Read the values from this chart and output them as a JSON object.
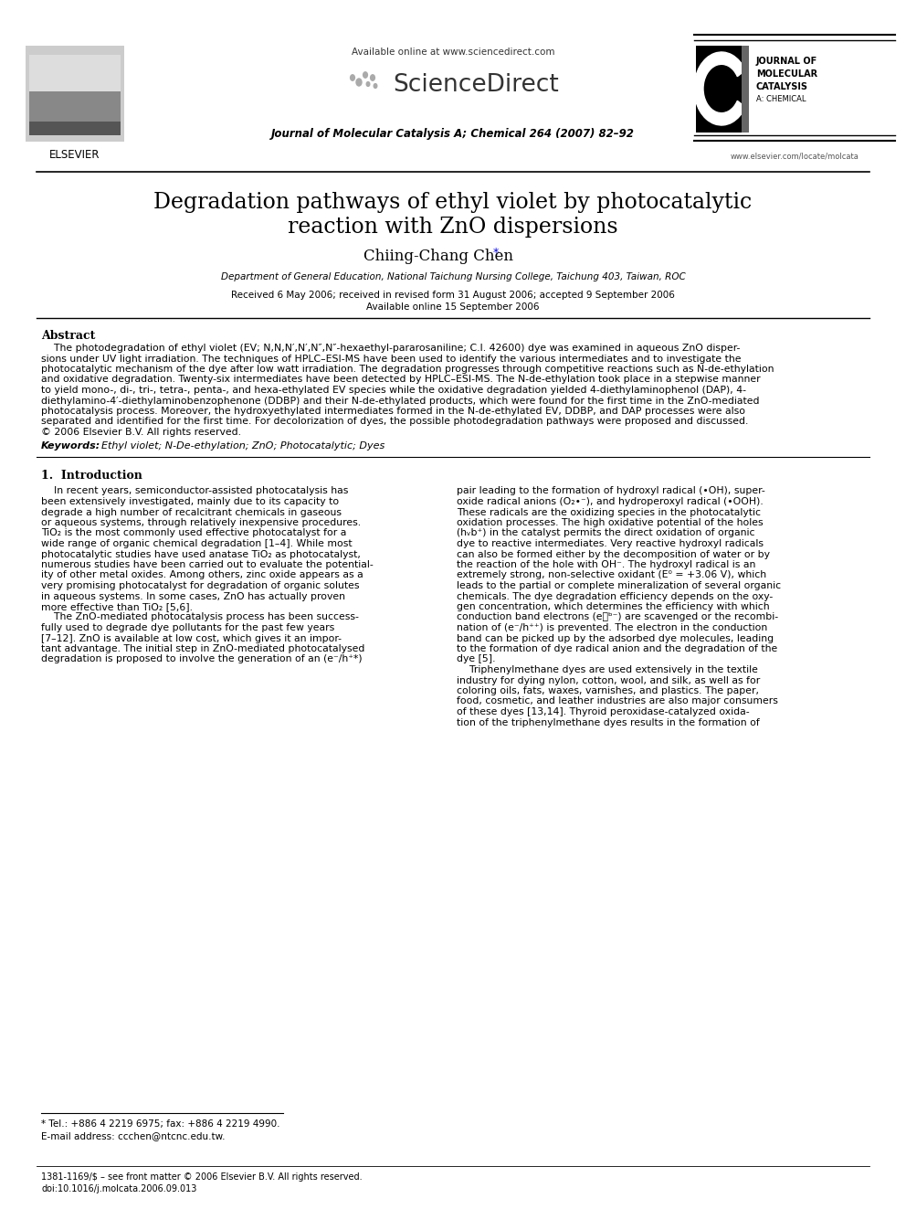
{
  "title_line1": "Degradation pathways of ethyl violet by photocatalytic",
  "title_line2": "reaction with ZnO dispersions",
  "author": "Chiing-Chang Chen",
  "author_asterisk": "*",
  "affiliation": "Department of General Education, National Taichung Nursing College, Taichung 403, Taiwan, ROC",
  "received": "Received 6 May 2006; received in revised form 31 August 2006; accepted 9 September 2006",
  "available": "Available online 15 September 2006",
  "journal_header": "Available online at www.sciencedirect.com",
  "journal_name": "Journal of Molecular Catalysis A; Chemical 264 (2007) 82–92",
  "journal_logo_text_line1": "JOURNAL OF",
  "journal_logo_text_line2": "MOLECULAR",
  "journal_logo_text_line3": "CATALYSIS",
  "journal_logo_text_line4": "A: CHEMICAL",
  "elsevier_label": "ELSEVIER",
  "sciencedirect_text": "ScienceDirect",
  "website": "www.elsevier.com/locate/molcata",
  "abstract_title": "Abstract",
  "keywords_label": "Keywords: ",
  "keywords_text": " Ethyl violet; N-De-ethylation; ZnO; Photocatalytic; Dyes",
  "section1_title": "1.  Introduction",
  "footnote1": "* Tel.: +886 4 2219 6975; fax: +886 4 2219 4990.",
  "footnote2": "E-mail address: ccchen@ntcnc.edu.tw.",
  "footer1": "1381-1169/$ – see front matter © 2006 Elsevier B.V. All rights reserved.",
  "footer2": "doi:10.1016/j.molcata.2006.09.013",
  "bg_color": "#ffffff"
}
